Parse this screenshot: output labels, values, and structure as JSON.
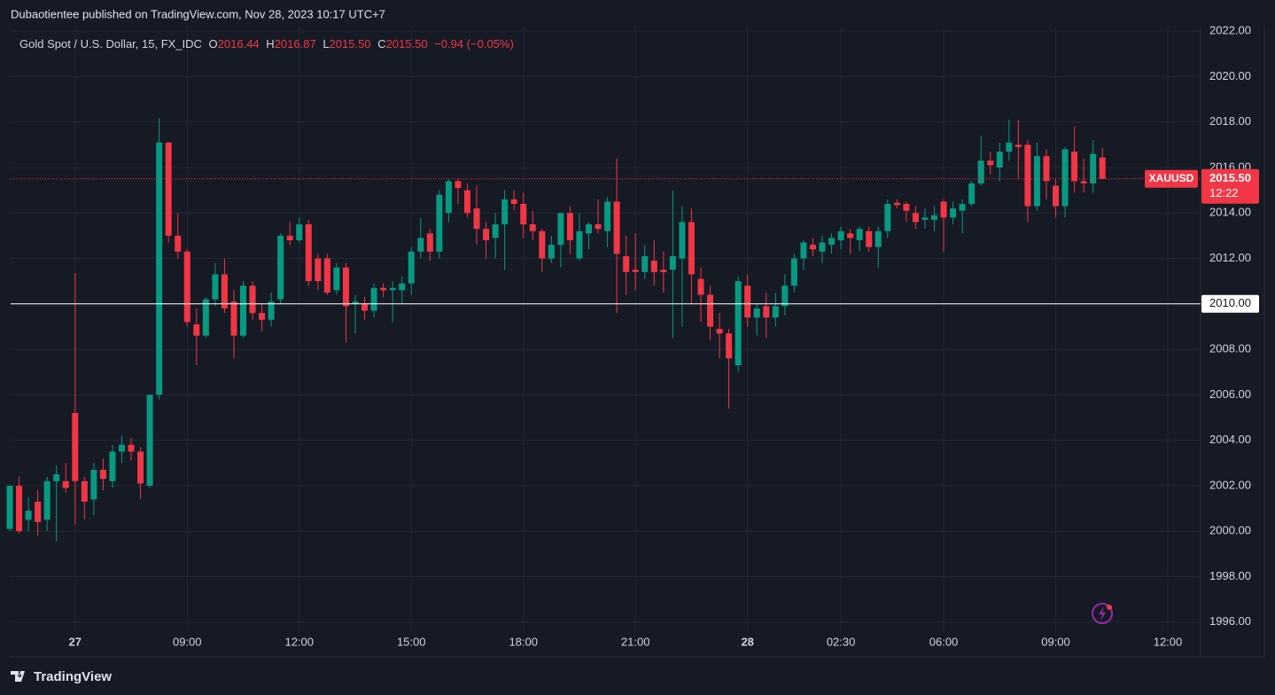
{
  "header": {
    "byline": "Dubaotientee published on TradingView.com, Nov 28, 2023 10:17 UTC+7",
    "symbol": "Gold Spot / U.S. Dollar, 15, FX_IDC",
    "o_label": "O",
    "open": "2016.44",
    "h_label": "H",
    "high": "2016.87",
    "l_label": "L",
    "low": "2015.50",
    "c_label": "C",
    "close": "2015.50",
    "change": "−0.94 (−0.05%)"
  },
  "footer": {
    "brand": "TradingView"
  },
  "chart_data": {
    "type": "candlestick",
    "up_color": "#089981",
    "down_color": "#f23645",
    "grid": true,
    "ylim": [
      1995.6,
      2022.2
    ],
    "yticks": [
      {
        "value": 1996,
        "label": "1996.00"
      },
      {
        "value": 1998,
        "label": "1998.00"
      },
      {
        "value": 2000,
        "label": "2000.00"
      },
      {
        "value": 2002,
        "label": "2002.00"
      },
      {
        "value": 2004,
        "label": "2004.00"
      },
      {
        "value": 2006,
        "label": "2006.00"
      },
      {
        "value": 2008,
        "label": "2008.00"
      },
      {
        "value": 2010,
        "label": "2010.00"
      },
      {
        "value": 2012,
        "label": "2012.00"
      },
      {
        "value": 2014,
        "label": "2014.00"
      },
      {
        "value": 2016,
        "label": "2016.00"
      },
      {
        "value": 2018,
        "label": "2018.00"
      },
      {
        "value": 2020,
        "label": "2020.00"
      },
      {
        "value": 2022,
        "label": "2022.00"
      }
    ],
    "categories": [
      null,
      null,
      null,
      null,
      null,
      null,
      null,
      "27",
      null,
      null,
      null,
      null,
      null,
      null,
      null,
      null,
      null,
      null,
      null,
      "09:00",
      null,
      null,
      null,
      null,
      null,
      null,
      null,
      null,
      null,
      null,
      null,
      "12:00",
      null,
      null,
      null,
      null,
      null,
      null,
      null,
      null,
      null,
      null,
      null,
      "15:00",
      null,
      null,
      null,
      null,
      null,
      null,
      null,
      null,
      null,
      null,
      null,
      "18:00",
      null,
      null,
      null,
      null,
      null,
      null,
      null,
      null,
      null,
      null,
      null,
      "21:00",
      null,
      null,
      null,
      null,
      null,
      null,
      null,
      null,
      null,
      null,
      null,
      "28",
      null,
      null,
      null,
      null,
      null,
      null,
      null,
      null,
      null,
      "02:30",
      null,
      null,
      null,
      null,
      null,
      null,
      null,
      null,
      null,
      null,
      "06:00",
      null,
      null,
      null,
      null,
      null,
      null,
      null,
      null,
      null,
      null,
      null,
      "09:00",
      null,
      null,
      null,
      null,
      null,
      null,
      null,
      null,
      null,
      null,
      null,
      "12:00"
    ],
    "open": [
      2000.1,
      2002.0,
      2000.5,
      2001.3,
      2000.5,
      2002.2,
      2002.2,
      2005.2,
      2002.2,
      2001.4,
      2002.7,
      2002.2,
      2003.5,
      2003.8,
      2003.5,
      2002.0,
      2006.0,
      2017.1,
      2013.0,
      2012.3,
      2009.1,
      2008.6,
      2010.2,
      2011.3,
      2010.1,
      2008.6,
      2010.8,
      2009.6,
      2009.3,
      2010.2,
      2013.0,
      2012.8,
      2013.5,
      2012.0,
      2012.0,
      2010.6,
      2011.6,
      2010.0,
      2010.0,
      2009.7,
      2010.7,
      2010.6,
      2010.6,
      2010.9,
      2012.3,
      2013.1,
      2012.3,
      2014.0,
      2015.4,
      2015.0,
      2014.2,
      2013.3,
      2012.9,
      2013.5,
      2014.6,
      2014.4,
      2013.5,
      2013.2,
      2012.0,
      2012.6,
      2014.0,
      2012.0,
      2013.1,
      2013.5,
      2013.2,
      2014.5,
      2012.1,
      2011.5,
      2011.4,
      2011.9,
      2011.5,
      2011.5,
      2012.0,
      2013.6,
      2011.1,
      2010.4,
      2008.9,
      2008.7,
      2007.3,
      2010.8,
      2009.4,
      2009.9,
      2009.4,
      2009.9,
      2010.8,
      2012.0,
      2012.6,
      2012.3,
      2012.6,
      2012.8,
      2013.1,
      2012.8,
      2013.2,
      2012.5,
      2013.2,
      2014.45,
      2014.4,
      2014.0,
      2013.7,
      2013.7,
      2014.5,
      2013.8,
      2014.1,
      2014.4,
      2015.3,
      2016.3,
      2016.0,
      2016.7,
      2017.0,
      2017.0,
      2014.3,
      2016.5,
      2015.2,
      2014.3,
      2016.7,
      2015.4,
      2015.3,
      2016.44,
      null,
      null,
      null,
      null,
      null,
      null,
      null
    ],
    "high": [
      2002.0,
      2002.4,
      2001.5,
      2001.8,
      2002.4,
      2002.9,
      2003.0,
      2011.35,
      2002.4,
      2003.0,
      2003.2,
      2003.8,
      2004.2,
      2004.1,
      2003.7,
      2006.0,
      2018.18,
      2017.1,
      2014.0,
      2012.4,
      2009.8,
      2010.3,
      2011.8,
      2012.0,
      2010.6,
      2011.0,
      2011.0,
      2010.0,
      2010.5,
      2013.1,
      2013.6,
      2013.8,
      2013.7,
      2012.2,
      2012.2,
      2011.8,
      2011.8,
      2010.4,
      2010.3,
      2010.9,
      2010.9,
      2011.0,
      2011.2,
      2012.5,
      2013.8,
      2013.3,
      2015.0,
      2015.5,
      2015.5,
      2015.3,
      2015.2,
      2013.6,
      2014.0,
      2015.0,
      2015.0,
      2014.9,
      2014.1,
      2013.3,
      2013.0,
      2014.0,
      2014.3,
      2014.0,
      2013.6,
      2014.6,
      2014.7,
      2016.4,
      2013.0,
      2013.1,
      2012.6,
      2012.8,
      2012.3,
      2015.0,
      2014.3,
      2014.2,
      2011.6,
      2010.8,
      2009.6,
      2008.9,
      2011.2,
      2011.3,
      2010.0,
      2010.5,
      2010.5,
      2011.3,
      2012.2,
      2012.8,
      2012.9,
      2013.0,
      2013.1,
      2013.4,
      2013.3,
      2013.4,
      2013.4,
      2013.4,
      2014.6,
      2014.6,
      2014.5,
      2014.3,
      2014.2,
      2014.3,
      2014.6,
      2014.5,
      2014.6,
      2015.4,
      2017.4,
      2016.7,
      2017.1,
      2018.1,
      2018.1,
      2017.2,
      2017.1,
      2016.8,
      2015.5,
      2016.9,
      2017.8,
      2016.4,
      2017.2,
      2016.87,
      null,
      null,
      null,
      null,
      null,
      null,
      null
    ],
    "low": [
      2000.0,
      1999.9,
      2000.0,
      1999.8,
      2000.0,
      1999.55,
      2001.7,
      2000.3,
      2000.5,
      2000.7,
      2001.8,
      2001.9,
      2003.0,
      2003.1,
      2001.4,
      2001.9,
      2005.8,
      2012.7,
      2012.0,
      2009.0,
      2007.3,
      2008.5,
      2009.9,
      2009.6,
      2007.6,
      2008.5,
      2009.3,
      2008.8,
      2009.0,
      2010.0,
      2012.6,
      2012.7,
      2010.8,
      2010.6,
      2010.4,
      2010.4,
      2008.3,
      2008.7,
      2009.3,
      2009.4,
      2010.3,
      2009.2,
      2010.0,
      2010.4,
      2012.0,
      2011.9,
      2012.0,
      2013.6,
      2014.4,
      2013.8,
      2012.6,
      2012.0,
      2012.0,
      2011.5,
      2014.1,
      2012.9,
      2012.8,
      2011.4,
      2011.8,
      2011.6,
      2012.2,
      2011.9,
      2012.4,
      2013.1,
      2012.5,
      2009.6,
      2010.4,
      2010.6,
      2011.1,
      2010.8,
      2010.5,
      2008.5,
      2009.0,
      2010.0,
      2009.2,
      2008.4,
      2007.6,
      2005.4,
      2007.0,
      2009.0,
      2008.6,
      2008.5,
      2009.0,
      2009.5,
      2010.5,
      2011.5,
      2012.1,
      2011.8,
      2012.2,
      2012.4,
      2012.2,
      2012.3,
      2012.3,
      2011.6,
      2012.9,
      2014.2,
      2013.6,
      2013.3,
      2013.3,
      2013.2,
      2012.3,
      2013.5,
      2013.1,
      2014.3,
      2015.2,
      2015.7,
      2015.4,
      2016.3,
      2015.5,
      2013.6,
      2014.1,
      2014.6,
      2013.8,
      2013.8,
      2014.9,
      2014.9,
      2014.9,
      2015.5,
      null,
      null,
      null,
      null,
      null,
      null,
      null
    ],
    "close": [
      2002.0,
      2000.0,
      2000.9,
      2000.4,
      2002.2,
      2002.5,
      2001.9,
      2002.2,
      2001.3,
      2002.7,
      2002.3,
      2003.5,
      2003.8,
      2003.5,
      2002.1,
      2006.0,
      2017.1,
      2013.0,
      2012.3,
      2009.2,
      2008.6,
      2010.2,
      2011.3,
      2009.8,
      2008.6,
      2010.8,
      2009.6,
      2009.3,
      2010.1,
      2013.0,
      2012.8,
      2013.5,
      2011.0,
      2011.0,
      2010.5,
      2011.6,
      2009.9,
      2010.1,
      2009.7,
      2010.7,
      2010.6,
      2010.7,
      2010.9,
      2012.3,
      2012.9,
      2012.3,
      2014.8,
      2015.4,
      2015.1,
      2014.0,
      2013.3,
      2012.8,
      2013.5,
      2014.6,
      2014.4,
      2013.5,
      2013.2,
      2012.0,
      2012.6,
      2014.0,
      2012.8,
      2013.2,
      2013.5,
      2013.3,
      2014.5,
      2012.2,
      2011.4,
      2011.4,
      2012.1,
      2011.4,
      2011.4,
      2012.1,
      2013.6,
      2011.3,
      2010.4,
      2009.0,
      2008.7,
      2007.6,
      2011.0,
      2009.4,
      2009.8,
      2009.4,
      2009.9,
      2010.8,
      2012.0,
      2012.7,
      2012.4,
      2012.7,
      2012.9,
      2013.2,
      2012.9,
      2013.3,
      2012.5,
      2013.2,
      2014.4,
      2014.35,
      2014.1,
      2013.6,
      2013.8,
      2013.9,
      2013.8,
      2014.2,
      2014.4,
      2015.3,
      2016.3,
      2016.1,
      2016.7,
      2017.1,
      2016.9,
      2014.3,
      2016.5,
      2015.4,
      2014.3,
      2016.8,
      2015.4,
      2015.3,
      2016.6,
      2015.5,
      null,
      null,
      null,
      null,
      null,
      null,
      null
    ],
    "last_price": {
      "value": 2015.5,
      "label": "2015.50",
      "symbol": "XAUUSD",
      "countdown": "12:22"
    },
    "hline": {
      "value": 2010,
      "label": "2010.00"
    }
  }
}
